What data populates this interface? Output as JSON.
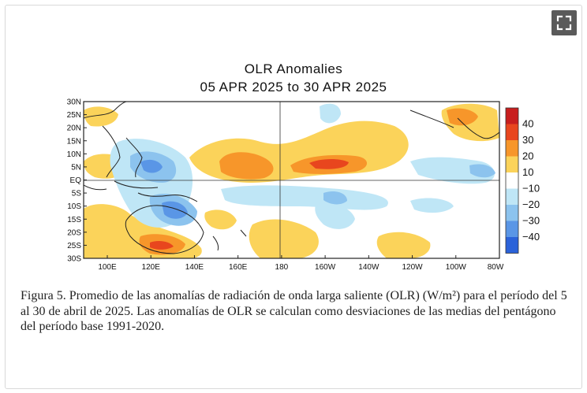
{
  "ui": {
    "fullscreen_icon": "fullscreen-expand-icon"
  },
  "chart_data": {
    "type": "heatmap",
    "title": "OLR Anomalies",
    "subtitle": "05 APR 2025 to 30 APR 2025",
    "x_ticks": [
      "100E",
      "120E",
      "140E",
      "160E",
      "180",
      "160W",
      "140W",
      "120W",
      "100W",
      "80W"
    ],
    "y_ticks": [
      "30N",
      "25N",
      "20N",
      "15N",
      "10N",
      "5N",
      "EQ",
      "5S",
      "10S",
      "15S",
      "20S",
      "25S",
      "30S"
    ],
    "colorbar": {
      "labels": [
        "40",
        "30",
        "20",
        "10",
        "−10",
        "−20",
        "−30",
        "−40"
      ],
      "levels": [
        {
          "range": "40 to 50",
          "color": "#c81e1e"
        },
        {
          "range": "30 to 40",
          "color": "#e8461e"
        },
        {
          "range": "20 to 30",
          "color": "#f7962a"
        },
        {
          "range": "10 to 20",
          "color": "#fbd35a"
        },
        {
          "range": "-10 to 10",
          "color": "#ffffff"
        },
        {
          "range": "-20 to -10",
          "color": "#bfe6f6"
        },
        {
          "range": "-30 to -20",
          "color": "#8cc3ee"
        },
        {
          "range": "-40 to -30",
          "color": "#5a96e6"
        },
        {
          "range": "-50 to -40",
          "color": "#2b62d9"
        }
      ]
    }
  },
  "caption": {
    "text": "Figura 5. Promedio de las anomalías de radiación de onda larga saliente (OLR) (W/m²) para el período del 5 al 30 de abril de 2025. Las anomalías de OLR se calculan como desviaciones de las medias del pentágono del período base 1991-2020."
  }
}
